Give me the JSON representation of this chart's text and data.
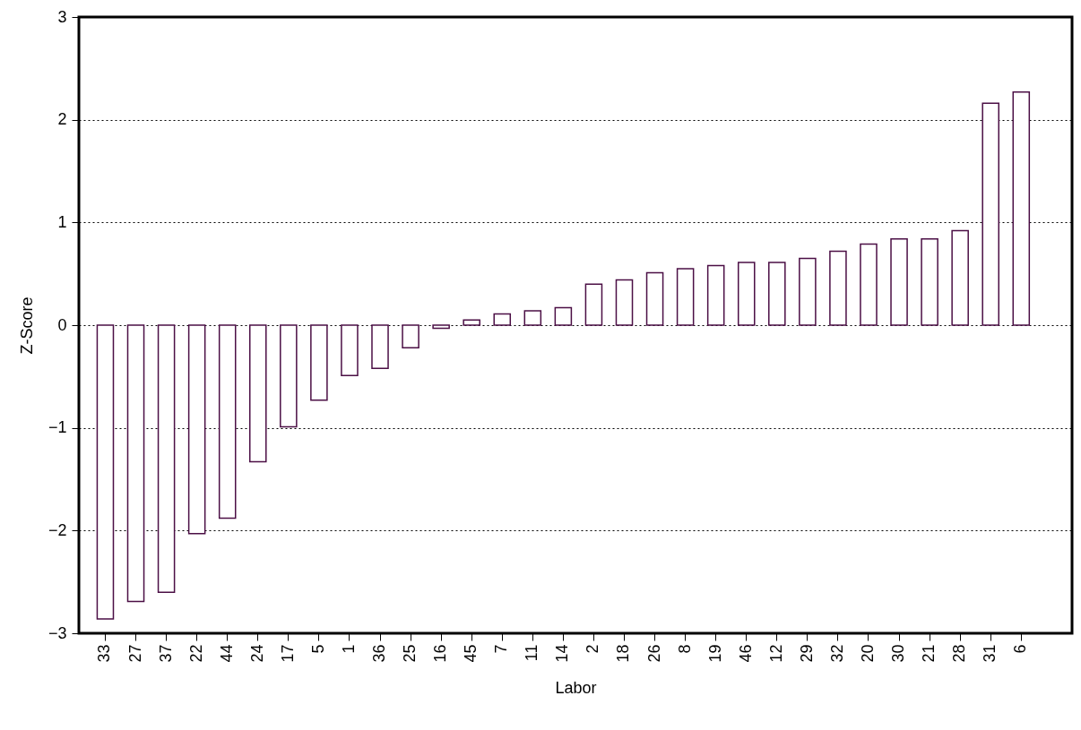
{
  "chart_data": {
    "type": "bar",
    "xlabel": "Labor",
    "ylabel": "Z-Score",
    "categories": [
      "33",
      "27",
      "37",
      "22",
      "44",
      "24",
      "17",
      "5",
      "1",
      "36",
      "25",
      "16",
      "45",
      "7",
      "11",
      "14",
      "2",
      "18",
      "26",
      "8",
      "19",
      "46",
      "12",
      "29",
      "32",
      "20",
      "30",
      "21",
      "28",
      "31",
      "6"
    ],
    "values": [
      -2.86,
      -2.69,
      -2.6,
      -2.03,
      -1.88,
      -1.33,
      -0.99,
      -0.73,
      -0.49,
      -0.42,
      -0.22,
      -0.03,
      0.05,
      0.11,
      0.14,
      0.17,
      0.4,
      0.44,
      0.51,
      0.55,
      0.58,
      0.61,
      0.61,
      0.65,
      0.72,
      0.79,
      0.84,
      0.84,
      0.92,
      2.16,
      2.27
    ],
    "color": "#4b0f45",
    "ylim": [
      -3,
      3
    ],
    "yticks": [
      -3,
      -2,
      -1,
      0,
      1,
      2,
      3
    ],
    "grid": "y"
  }
}
